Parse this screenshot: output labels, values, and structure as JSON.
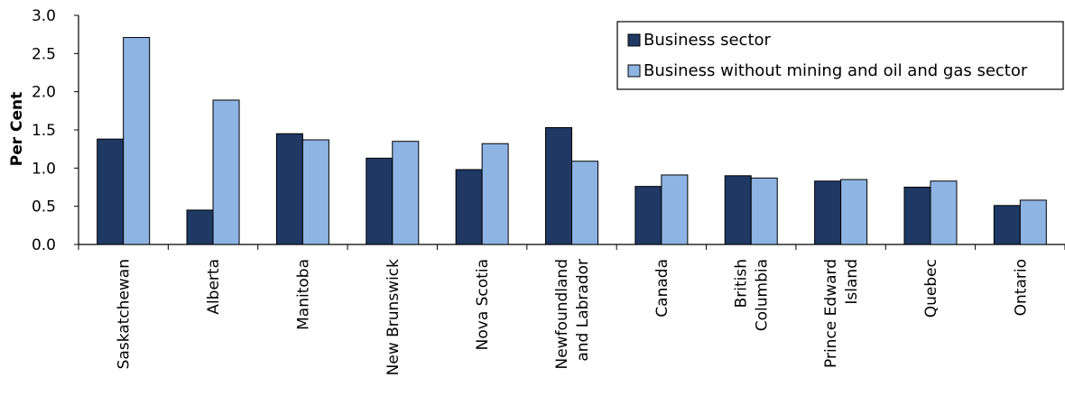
{
  "chart_data": {
    "type": "bar",
    "ylabel": "Per Cent",
    "ylim": [
      0,
      3.0
    ],
    "yticks": [
      "0.0",
      "0.5",
      "1.0",
      "1.5",
      "2.0",
      "2.5",
      "3.0"
    ],
    "grid": false,
    "legend_position": "top-right",
    "categories": [
      [
        "Saskatchewan"
      ],
      [
        "Alberta"
      ],
      [
        "Manitoba"
      ],
      [
        "New Brunswick"
      ],
      [
        "Nova Scotia"
      ],
      [
        "Newfoundland",
        "and Labrador"
      ],
      [
        "Canada"
      ],
      [
        "British",
        "Columbia"
      ],
      [
        "Prince Edward",
        "Island"
      ],
      [
        "Quebec"
      ],
      [
        "Ontario"
      ]
    ],
    "series": [
      {
        "name": "Business sector",
        "color": "#1f3864",
        "values": [
          1.38,
          0.45,
          1.45,
          1.13,
          0.98,
          1.53,
          0.76,
          0.9,
          0.83,
          0.75,
          0.51
        ]
      },
      {
        "name": "Business without mining and oil and gas sector",
        "color": "#8eb4e3",
        "values": [
          2.71,
          1.89,
          1.37,
          1.35,
          1.32,
          1.09,
          0.91,
          0.87,
          0.85,
          0.83,
          0.58
        ]
      }
    ]
  }
}
